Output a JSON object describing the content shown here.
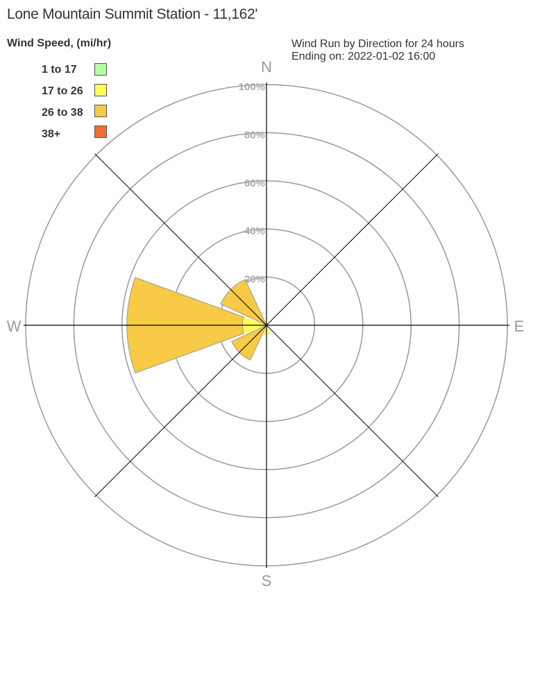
{
  "chart_data": {
    "type": "wind-rose",
    "title": "Lone Mountain Summit Station - 11,162'",
    "subtitle_lines": [
      "Wind Run by Direction for 24 hours",
      "Ending on: 2022-01-02 16:00"
    ],
    "legend_title": "Wind Speed, (mi/hr)",
    "legend_placement": "top-left",
    "speed_bins": [
      {
        "label": "1 to 17",
        "color": "#b3ffa6"
      },
      {
        "label": "17 to 26",
        "color": "#ffff55"
      },
      {
        "label": "26 to 38",
        "color": "#f7cb46"
      },
      {
        "label": "38+",
        "color": "#ee6f30"
      }
    ],
    "radial_ticks": [
      "20%",
      "40%",
      "60%",
      "80%",
      "100%"
    ],
    "radial_values": [
      20,
      40,
      60,
      80,
      100
    ],
    "rlim": [
      0,
      100
    ],
    "compass_labels": {
      "N": "N",
      "E": "E",
      "S": "S",
      "W": "W"
    },
    "directions": [
      {
        "dir": "S",
        "bearing": 180,
        "values": [
          0,
          4,
          0,
          0
        ]
      },
      {
        "dir": "SW",
        "bearing": 225,
        "values": [
          0,
          0,
          16,
          0
        ]
      },
      {
        "dir": "W",
        "bearing": 270,
        "values": [
          0,
          10,
          48,
          0
        ]
      },
      {
        "dir": "NW",
        "bearing": 315,
        "values": [
          0,
          0,
          21,
          0
        ]
      }
    ]
  }
}
